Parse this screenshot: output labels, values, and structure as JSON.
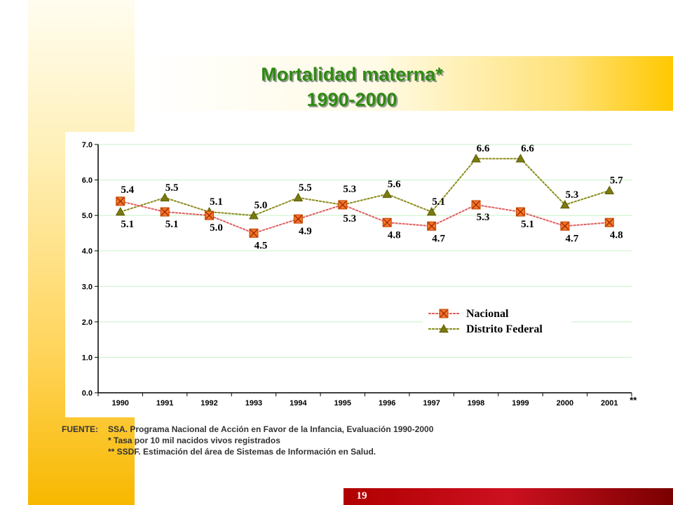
{
  "slide": {
    "title_line1": "Mortalidad materna*",
    "title_line2": "1990-2000",
    "page_number": "19",
    "footnote_label": "FUENTE:",
    "footnote_source": "SSA. Programa Nacional de Acción en Favor de la Infancia, Evaluación 1990-2000",
    "footnote_rate": "* Tasa por 10 mil nacidos vivos registrados",
    "footnote_ssdf": "** SSDF. Estimación del área de Sistemas de Información en Salud.",
    "x_suffix": "**"
  },
  "colors": {
    "title": "#2e8b10",
    "nacional_line": "#e06060",
    "nacional_marker": "#f07828",
    "df_line": "#8c8c1e",
    "df_marker": "#7a7a10",
    "grid": "#c8f0c8"
  },
  "chart_data": {
    "type": "line",
    "categories": [
      "1990",
      "1991",
      "1992",
      "1993",
      "1994",
      "1995",
      "1996",
      "1997",
      "1998",
      "1999",
      "2000",
      "2001"
    ],
    "ylim": [
      0,
      7
    ],
    "yticks": [
      "0.0",
      "1.0",
      "2.0",
      "3.0",
      "4.0",
      "5.0",
      "6.0",
      "7.0"
    ],
    "grid": true,
    "legend_position": "bottom-right",
    "series": [
      {
        "name": "Nacional",
        "values": [
          5.4,
          5.1,
          5.0,
          4.5,
          4.9,
          5.3,
          4.8,
          4.7,
          5.3,
          5.1,
          4.7,
          4.8
        ],
        "labels": [
          "5.4",
          "5.1",
          "5.0",
          "4.5",
          "4.9",
          "5.3",
          "4.8",
          "4.7",
          "5.3",
          "5.1",
          "4.7",
          "4.8"
        ]
      },
      {
        "name": "Distrito Federal",
        "values": [
          5.1,
          5.5,
          5.1,
          5.0,
          5.5,
          5.3,
          5.6,
          5.1,
          6.6,
          6.6,
          5.3,
          5.7
        ],
        "labels": [
          "5.1",
          "5.5",
          "5.1",
          "5.0",
          "5.5",
          "5.3",
          "5.6",
          "5.1",
          "6.6",
          "6.6",
          "5.3",
          "5.7"
        ]
      }
    ]
  }
}
